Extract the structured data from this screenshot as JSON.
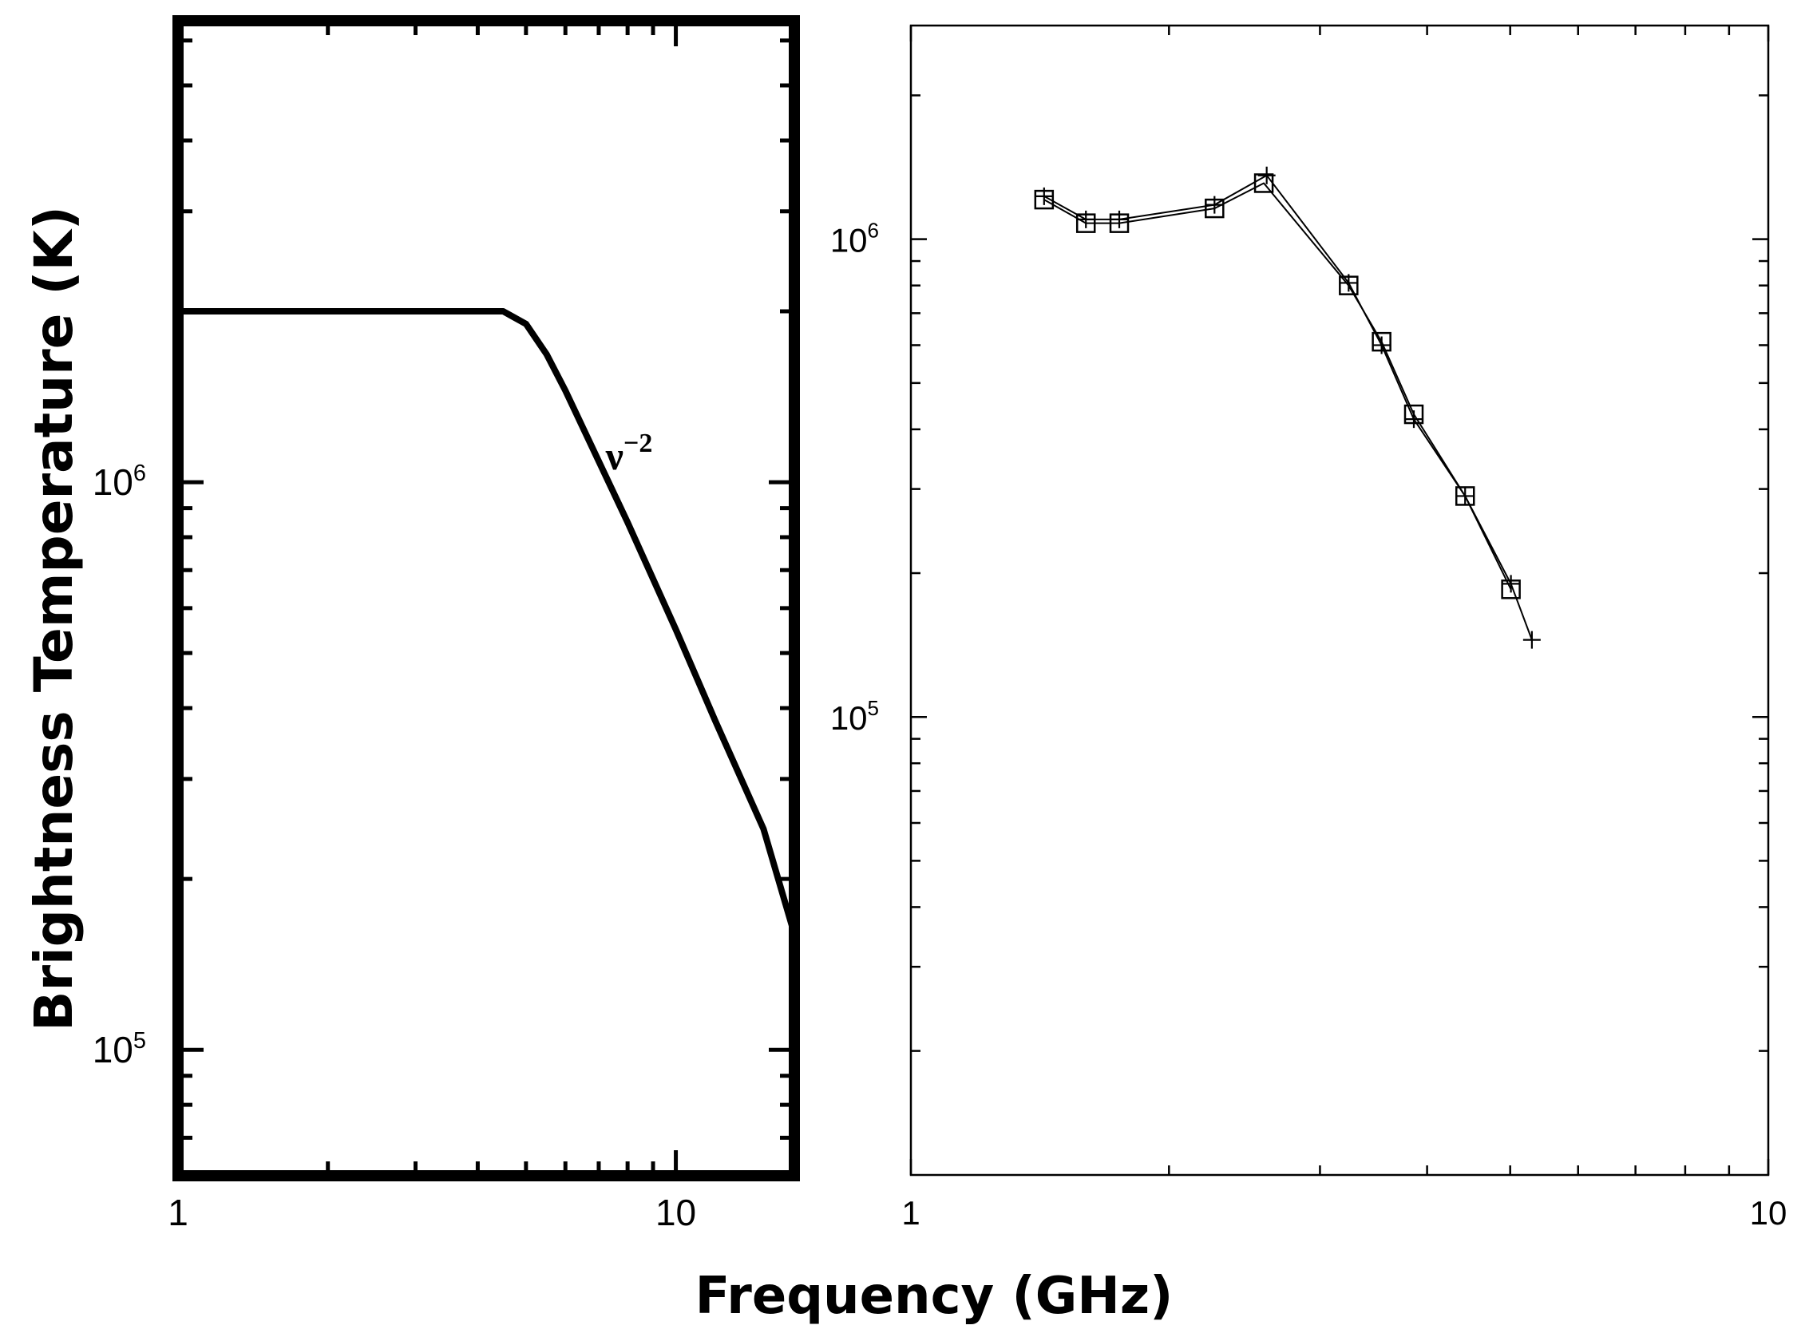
{
  "figure": {
    "ylabel": "Brightness Temperature (K)",
    "xlabel": "Frequency (GHz)"
  },
  "chart_data": [
    {
      "type": "line",
      "panel": "left",
      "title": "",
      "xlabel": "Frequency (GHz)",
      "ylabel": "Brightness Temperature (K)",
      "xscale": "log",
      "yscale": "log",
      "xlim": [
        1,
        17.3
      ],
      "ylim": [
        60000,
        6500000
      ],
      "x_ticks": [
        {
          "value": 1,
          "label": "1"
        },
        {
          "value": 10,
          "label": "10"
        }
      ],
      "y_ticks": [
        {
          "value": 100000,
          "label": "10",
          "exp": "5"
        },
        {
          "value": 1000000,
          "label": "10",
          "exp": "6"
        }
      ],
      "annotations": [
        {
          "text": "ν",
          "sup": "−2",
          "x": 7.5,
          "y": 1200000
        }
      ],
      "series": [
        {
          "x": [
            1,
            4.5,
            5.0,
            5.5,
            6.0,
            8.0,
            10.0,
            12.0,
            15.0,
            17.3
          ],
          "y": [
            2000000,
            2000000,
            1900000,
            1680000,
            1450000,
            850000,
            550000,
            380000,
            245000,
            160000
          ]
        }
      ]
    },
    {
      "type": "line",
      "panel": "right",
      "title": "",
      "xscale": "log",
      "yscale": "log",
      "xlim": [
        1,
        10
      ],
      "ylim": [
        11000,
        2800000
      ],
      "x_ticks": [
        {
          "value": 1,
          "label": "1"
        },
        {
          "value": 10,
          "label": "10"
        }
      ],
      "y_ticks": [
        {
          "value": 100000,
          "label": "10",
          "exp": "5"
        },
        {
          "value": 1000000,
          "label": "10",
          "exp": "6"
        }
      ],
      "series": [
        {
          "marker": "square",
          "x": [
            1.43,
            1.6,
            1.75,
            2.26,
            2.58,
            3.24,
            3.54,
            3.86,
            4.43,
            5.01
          ],
          "y": [
            1210000,
            1080000,
            1080000,
            1160000,
            1310000,
            800000,
            610000,
            430000,
            290000,
            185000
          ]
        },
        {
          "marker": "plus",
          "x": [
            1.43,
            1.6,
            1.75,
            2.26,
            2.6,
            3.24,
            3.54,
            3.86,
            4.43,
            5.01,
            5.3
          ],
          "y": [
            1230000,
            1100000,
            1100000,
            1180000,
            1360000,
            810000,
            600000,
            420000,
            290000,
            190000,
            145000
          ]
        }
      ]
    }
  ]
}
